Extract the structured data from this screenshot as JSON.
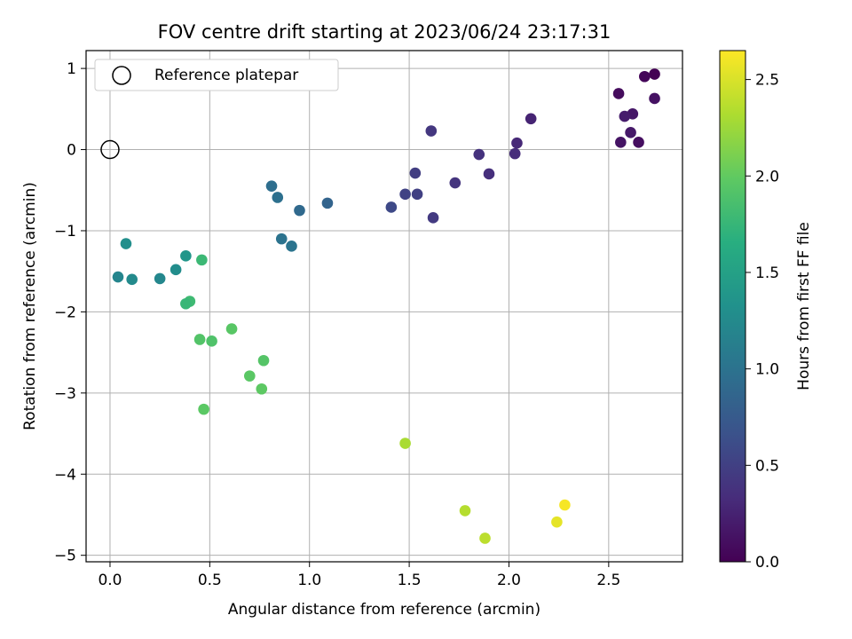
{
  "chart_data": {
    "type": "scatter",
    "title": "FOV centre drift starting at 2023/06/24 23:17:31",
    "xlabel": "Angular distance from reference (arcmin)",
    "ylabel": "Rotation from reference (arcmin)",
    "colorbar_label": "Hours from first FF file",
    "xlim": [
      -0.12,
      2.87
    ],
    "ylim": [
      -5.08,
      1.22
    ],
    "clim": [
      0.0,
      2.65
    ],
    "colormap": "viridis",
    "grid": true,
    "legend_placement": "upper-left",
    "x_ticks": [
      0.0,
      0.5,
      1.0,
      1.5,
      2.0,
      2.5
    ],
    "x_tick_labels": [
      "0.0",
      "0.5",
      "1.0",
      "1.5",
      "2.0",
      "2.5"
    ],
    "y_ticks": [
      1,
      0,
      -1,
      -2,
      -3,
      -4,
      -5
    ],
    "y_tick_labels": [
      "1",
      "0",
      "−1",
      "−2",
      "−3",
      "−4",
      "−5"
    ],
    "c_ticks": [
      0.0,
      0.5,
      1.0,
      1.5,
      2.0,
      2.5
    ],
    "c_tick_labels": [
      "0.0",
      "0.5",
      "1.0",
      "1.5",
      "2.0",
      "2.5"
    ],
    "reference": {
      "label": "Reference platepar",
      "x": 0.0,
      "y": 0.0
    },
    "points": [
      {
        "x": 2.73,
        "y": 0.93,
        "c": 0.0
      },
      {
        "x": 2.68,
        "y": 0.9,
        "c": 0.04
      },
      {
        "x": 2.55,
        "y": 0.69,
        "c": 0.08
      },
      {
        "x": 2.73,
        "y": 0.63,
        "c": 0.12
      },
      {
        "x": 2.62,
        "y": 0.44,
        "c": 0.16
      },
      {
        "x": 2.58,
        "y": 0.41,
        "c": 0.2
      },
      {
        "x": 2.61,
        "y": 0.21,
        "c": 0.18
      },
      {
        "x": 2.56,
        "y": 0.09,
        "c": 0.14
      },
      {
        "x": 2.65,
        "y": 0.09,
        "c": 0.1
      },
      {
        "x": 2.11,
        "y": 0.38,
        "c": 0.26
      },
      {
        "x": 2.04,
        "y": 0.08,
        "c": 0.3
      },
      {
        "x": 2.03,
        "y": -0.05,
        "c": 0.33
      },
      {
        "x": 1.85,
        "y": -0.06,
        "c": 0.38
      },
      {
        "x": 1.9,
        "y": -0.3,
        "c": 0.35
      },
      {
        "x": 1.61,
        "y": 0.23,
        "c": 0.42
      },
      {
        "x": 1.53,
        "y": -0.29,
        "c": 0.48
      },
      {
        "x": 1.73,
        "y": -0.41,
        "c": 0.4
      },
      {
        "x": 1.48,
        "y": -0.55,
        "c": 0.52
      },
      {
        "x": 1.54,
        "y": -0.55,
        "c": 0.5
      },
      {
        "x": 1.62,
        "y": -0.84,
        "c": 0.45
      },
      {
        "x": 1.41,
        "y": -0.71,
        "c": 0.58
      },
      {
        "x": 1.09,
        "y": -0.66,
        "c": 0.85
      },
      {
        "x": 0.95,
        "y": -0.75,
        "c": 0.9
      },
      {
        "x": 0.81,
        "y": -0.45,
        "c": 0.95
      },
      {
        "x": 0.84,
        "y": -0.59,
        "c": 0.97
      },
      {
        "x": 0.86,
        "y": -1.1,
        "c": 1.0
      },
      {
        "x": 0.91,
        "y": -1.19,
        "c": 1.02
      },
      {
        "x": 0.08,
        "y": -1.16,
        "c": 1.3
      },
      {
        "x": 0.04,
        "y": -1.57,
        "c": 1.2
      },
      {
        "x": 0.11,
        "y": -1.6,
        "c": 1.25
      },
      {
        "x": 0.25,
        "y": -1.59,
        "c": 1.22
      },
      {
        "x": 0.33,
        "y": -1.48,
        "c": 1.28
      },
      {
        "x": 0.38,
        "y": -1.31,
        "c": 1.38
      },
      {
        "x": 0.46,
        "y": -1.36,
        "c": 1.78
      },
      {
        "x": 0.4,
        "y": -1.87,
        "c": 1.8
      },
      {
        "x": 0.38,
        "y": -1.9,
        "c": 1.76
      },
      {
        "x": 0.45,
        "y": -2.34,
        "c": 1.92
      },
      {
        "x": 0.51,
        "y": -2.36,
        "c": 1.9
      },
      {
        "x": 0.61,
        "y": -2.21,
        "c": 1.95
      },
      {
        "x": 0.77,
        "y": -2.6,
        "c": 1.93
      },
      {
        "x": 0.7,
        "y": -2.79,
        "c": 1.96
      },
      {
        "x": 0.76,
        "y": -2.95,
        "c": 1.98
      },
      {
        "x": 0.47,
        "y": -3.2,
        "c": 1.97
      },
      {
        "x": 1.48,
        "y": -3.62,
        "c": 2.3
      },
      {
        "x": 1.78,
        "y": -4.45,
        "c": 2.35
      },
      {
        "x": 1.88,
        "y": -4.79,
        "c": 2.38
      },
      {
        "x": 2.24,
        "y": -4.59,
        "c": 2.55
      },
      {
        "x": 2.28,
        "y": -4.38,
        "c": 2.62
      }
    ]
  }
}
